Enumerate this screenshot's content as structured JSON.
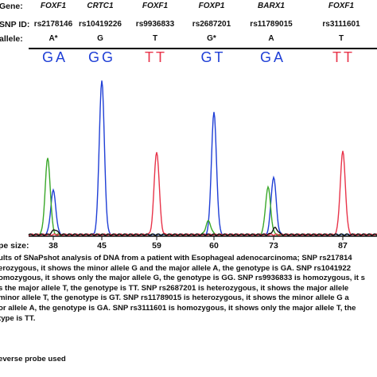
{
  "header": {
    "gene_label": "Gene:",
    "snp_label": "SNP ID:",
    "allele_label": "allele:"
  },
  "loci": [
    {
      "gene": "FOXF1",
      "snp": "rs2178146",
      "allele": "A*",
      "genotype": "GA",
      "size": "38"
    },
    {
      "gene": "CRTC1",
      "snp": "rs10419226",
      "allele": "G",
      "genotype": "GG",
      "size": "45"
    },
    {
      "gene": "FOXF1",
      "snp": "rs9936833",
      "allele": "T",
      "genotype": "TT",
      "size": "59"
    },
    {
      "gene": "FOXP1",
      "snp": "rs2687201",
      "allele": "G*",
      "genotype": "GT",
      "size": "60"
    },
    {
      "gene": "BARX1",
      "snp": "rs11789015",
      "allele": "A",
      "genotype": "GA",
      "size": "73"
    },
    {
      "gene": "FOXF1",
      "snp": "rs3111601",
      "allele": "T",
      "genotype": "TT",
      "size": "87"
    }
  ],
  "size_axis_label": "pe size:",
  "caption_lines": [
    "ults of SNaPshot analysis of DNA from a patient with Esophageal adenocarcinoma; SNP rs217814",
    "erozygous, it shows the minor allele G and the major allele A, the genotype is GA. SNP rs1041922",
    "omozygous, it shows only the major allele G, the genotype is GG. SNP rs9936833 is homozygous, it s",
    "s the major allele T, the genotype is TT. SNP rs2687201 is heterozygous, it shows the major allele",
    "minor allele T, the genotype is GT. SNP rs11789015 is heterozygous, it shows the  minor allele G a",
    "or allele A, the genotype is GA. SNP rs3111601 is homozygous, it shows only the major allele T, the",
    "type is TT."
  ],
  "footnote": "everse probe used",
  "colors": {
    "blue": "#1f3fd6",
    "green": "#3aa82a",
    "red": "#e8344a",
    "black": "#111111",
    "genotype_blue": "#1f3fd6",
    "genotype_red": "#e8344a"
  },
  "chart_data": {
    "type": "line",
    "x_axis_ticks": [
      "38",
      "45",
      "59",
      "60",
      "73",
      "87"
    ],
    "series": [
      {
        "color": "blue",
        "peaks": [
          {
            "locus": "38",
            "height": 0.26
          },
          {
            "locus": "45",
            "height": 0.91
          },
          {
            "locus": "60",
            "height": 0.72
          },
          {
            "locus": "73",
            "height": 0.34
          }
        ]
      },
      {
        "color": "green",
        "peaks": [
          {
            "locus": "38",
            "height": 0.45
          },
          {
            "locus": "60",
            "height": 0.08
          },
          {
            "locus": "73",
            "height": 0.28
          }
        ]
      },
      {
        "color": "red",
        "peaks": [
          {
            "locus": "59",
            "height": 0.49
          },
          {
            "locus": "87",
            "height": 0.49
          }
        ]
      },
      {
        "color": "black",
        "peaks": [
          {
            "locus": "38",
            "height": 0.03
          },
          {
            "locus": "73",
            "height": 0.04
          }
        ]
      }
    ],
    "grid": false
  }
}
